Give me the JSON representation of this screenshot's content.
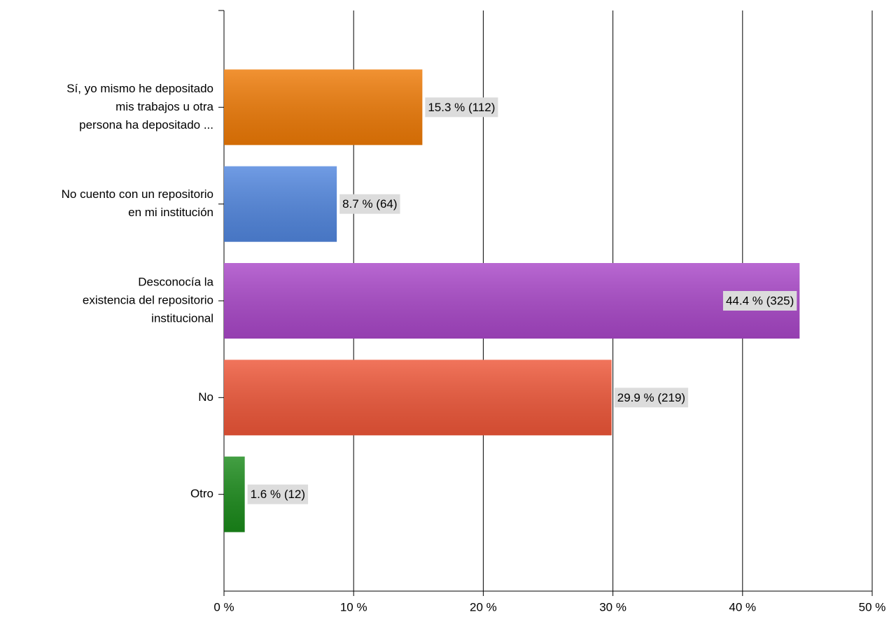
{
  "chart_data": {
    "type": "bar",
    "orientation": "horizontal",
    "categories": [
      [
        "Sí, yo mismo he depositado",
        "mis trabajos u otra",
        "persona ha depositado ..."
      ],
      [
        "No cuento con un repositorio",
        "en mi institución"
      ],
      [
        "Desconocía la",
        "existencia del repositorio",
        "institucional"
      ],
      [
        "No"
      ],
      [
        "Otro"
      ]
    ],
    "values": [
      15.3,
      8.7,
      44.4,
      29.9,
      1.6
    ],
    "value_labels": [
      "15.3 % (112)",
      "8.7 % (64)",
      "44.4 % (325)",
      "29.9 % (219)",
      "1.6 % (12)"
    ],
    "colors": [
      "#ee7a06",
      "#5186de",
      "#a947c8",
      "#ee5638",
      "#1a8a1a"
    ],
    "xlim": [
      0,
      50
    ],
    "xticks": [
      {
        "value": 0,
        "label": "0 %"
      },
      {
        "value": 10,
        "label": "10 %"
      },
      {
        "value": 20,
        "label": "20 %"
      },
      {
        "value": 30,
        "label": "30 %"
      },
      {
        "value": 40,
        "label": "40 %"
      },
      {
        "value": 50,
        "label": "50 %"
      }
    ],
    "grid": true
  }
}
